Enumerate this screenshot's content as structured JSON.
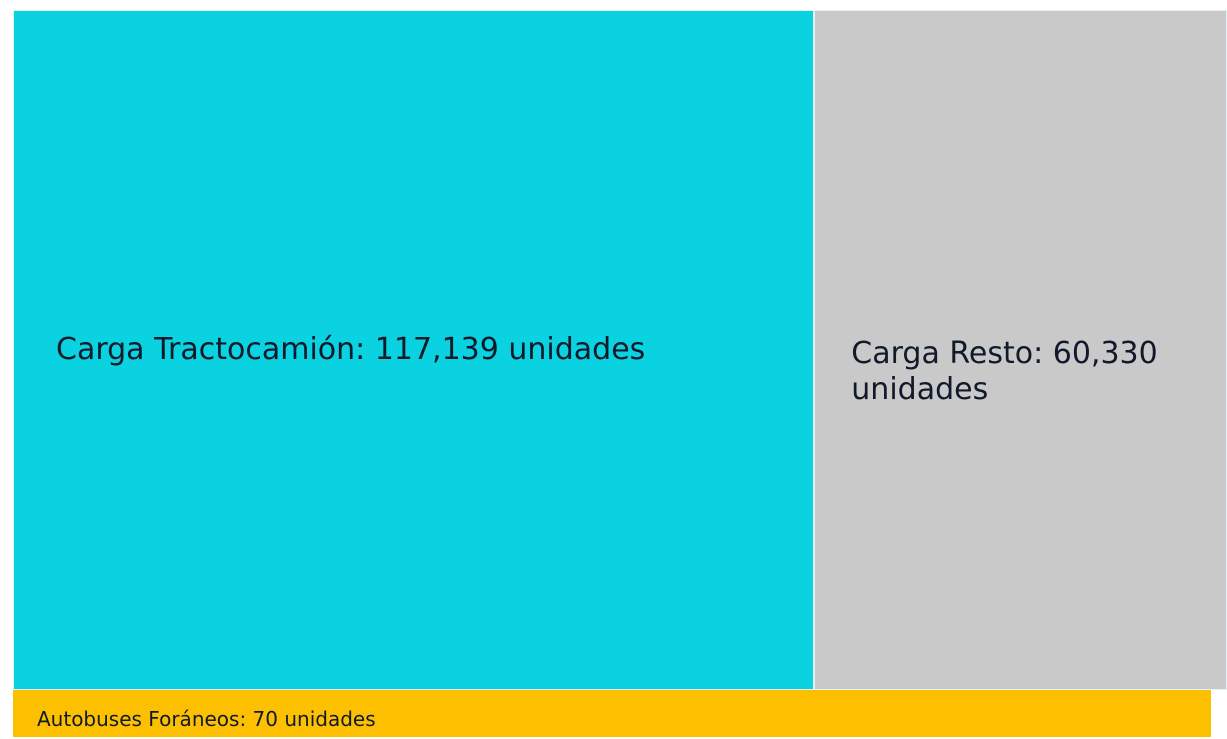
{
  "chart_data": {
    "type": "treemap",
    "values": [
      117139,
      60330,
      70
    ],
    "value_labels": [
      "Carga Tractocamión: 117,139 unidades",
      "Carga Resto: 60,330 unidades",
      "Autobuses Foráneos: 70 unidades"
    ],
    "colors": [
      "#0ad2e0",
      "#c9c9c9",
      "#fdc000"
    ]
  }
}
